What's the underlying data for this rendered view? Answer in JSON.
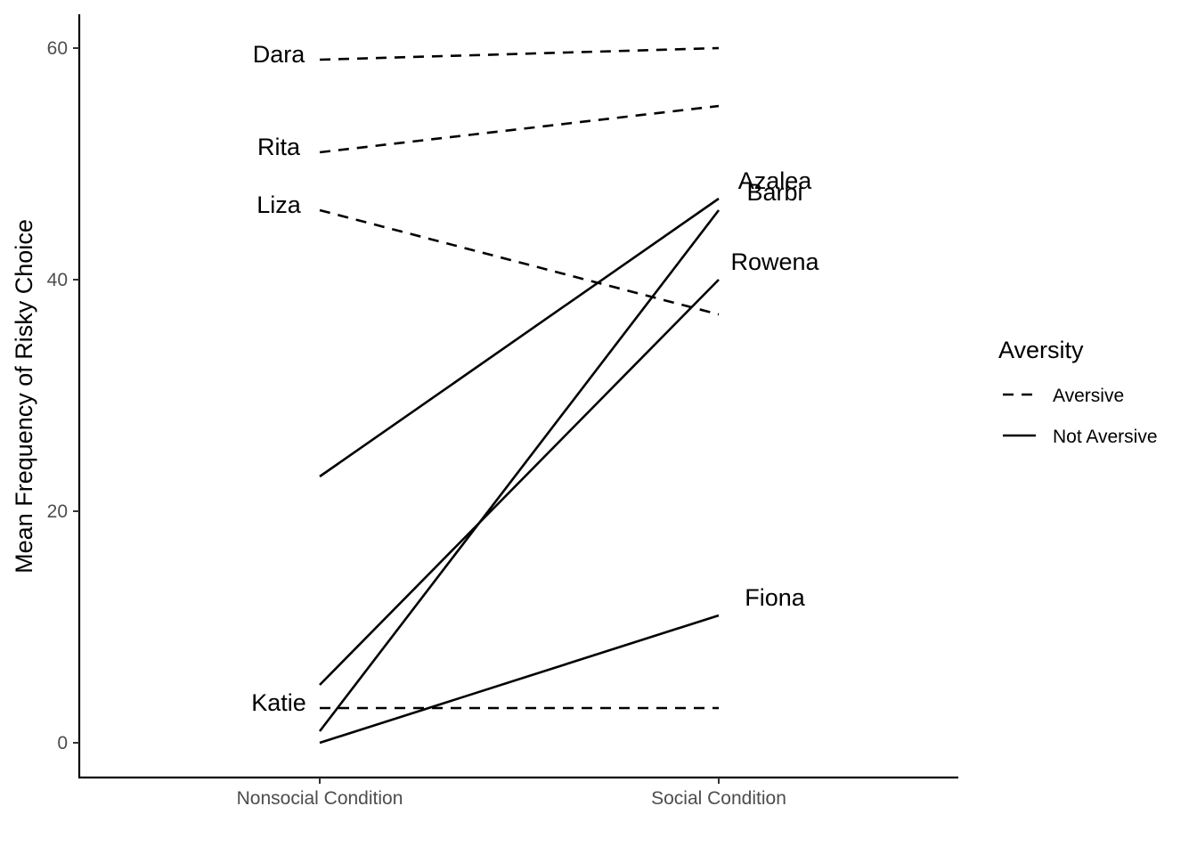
{
  "chart_data": {
    "type": "line",
    "title": "",
    "xlabel": "",
    "ylabel": "Mean Frequency of Risky Choice",
    "categories": [
      "Nonsocial Condition",
      "Social Condition"
    ],
    "ylim": [
      -3,
      63
    ],
    "yticks": [
      0,
      20,
      40,
      60
    ],
    "grid": false,
    "legend": {
      "title": "Aversity",
      "placement": "right",
      "items": [
        {
          "label": "Aversive",
          "linetype": "dashed"
        },
        {
          "label": "Not Aversive",
          "linetype": "solid"
        }
      ]
    },
    "series": [
      {
        "name": "Dara",
        "group": "Aversive",
        "values": [
          59,
          60
        ],
        "label_side": "left"
      },
      {
        "name": "Rita",
        "group": "Aversive",
        "values": [
          51,
          55
        ],
        "label_side": "left"
      },
      {
        "name": "Liza",
        "group": "Aversive",
        "values": [
          46,
          37
        ],
        "label_side": "left"
      },
      {
        "name": "Katie",
        "group": "Aversive",
        "values": [
          3,
          3
        ],
        "label_side": "left"
      },
      {
        "name": "Azalea",
        "group": "Not Aversive",
        "values": [
          23,
          47
        ],
        "label_side": "right"
      },
      {
        "name": "Barbi",
        "group": "Not Aversive",
        "values": [
          1,
          46
        ],
        "label_side": "right"
      },
      {
        "name": "Rowena",
        "group": "Not Aversive",
        "values": [
          5,
          40
        ],
        "label_side": "right"
      },
      {
        "name": "Fiona",
        "group": "Not Aversive",
        "values": [
          0,
          11
        ],
        "label_side": "right"
      }
    ]
  }
}
